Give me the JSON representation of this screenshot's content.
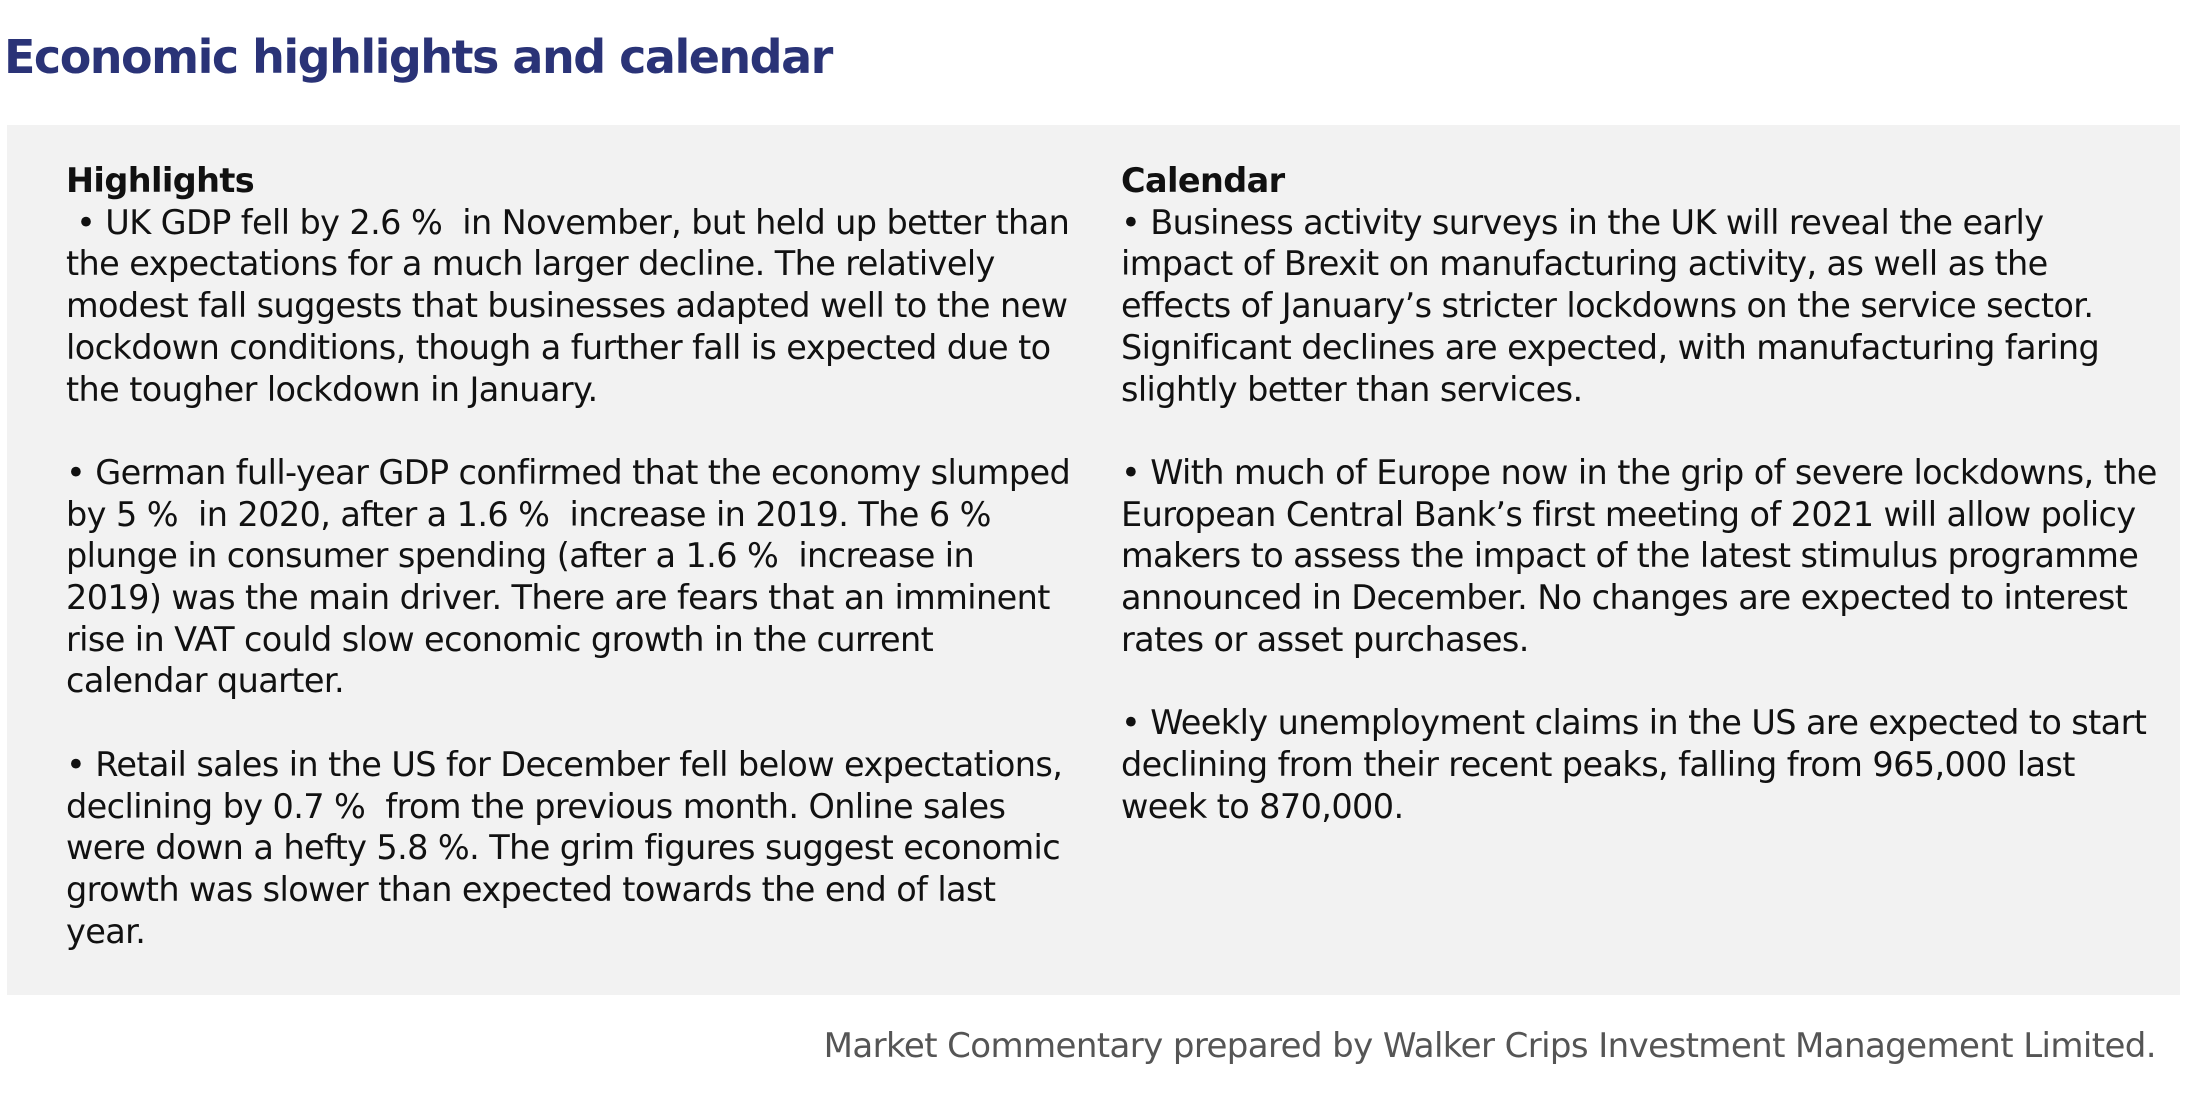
{
  "title": "Economic highlights and calendar",
  "highlights": {
    "heading": "Highlights",
    "items": [
      " • UK GDP fell by 2.6 %  in November, but held up better than the expectations for a much larger decline. The relatively modest fall suggests that businesses adapted well to the new lockdown conditions, though a further fall is expected due to the tougher lockdown in January.",
      "• German full-year GDP confirmed that the economy slumped by 5 %  in 2020, after a 1.6 %  increase in 2019. The 6 %  plunge in consumer spending (after a 1.6 %  increase in 2019) was the main driver. There are fears that an imminent rise in VAT could slow economic growth in the current calendar quarter.",
      "• Retail sales in the US for December fell below expectations, declining by 0.7 %  from the previous month. Online sales were down a hefty 5.8 %. The grim figures suggest economic growth was slower than expected towards the end of last year."
    ]
  },
  "calendar": {
    "heading": "Calendar",
    "items": [
      "• Business activity surveys in the UK will reveal the early impact of Brexit on manufacturing activity, as well as the effects of January’s stricter lockdowns on the service sector. Significant declines are expected, with manufacturing faring slightly better than services.",
      "• With much of Europe now in the grip of severe lockdowns, the European Central Bank’s first meeting of 2021 will allow policy makers to assess the impact of the latest stimulus programme announced in December. No changes are expected to interest rates or asset purchases.",
      "• Weekly unemployment claims in the US are expected to start declining from their recent peaks, falling from 965,000 last week to 870,000."
    ]
  },
  "footer": "Market Commentary prepared by Walker Crips Investment Management Limited.",
  "colors": {
    "title": "#2a3377",
    "panel_background": "#f2f2f2",
    "footer_text": "#555555"
  }
}
